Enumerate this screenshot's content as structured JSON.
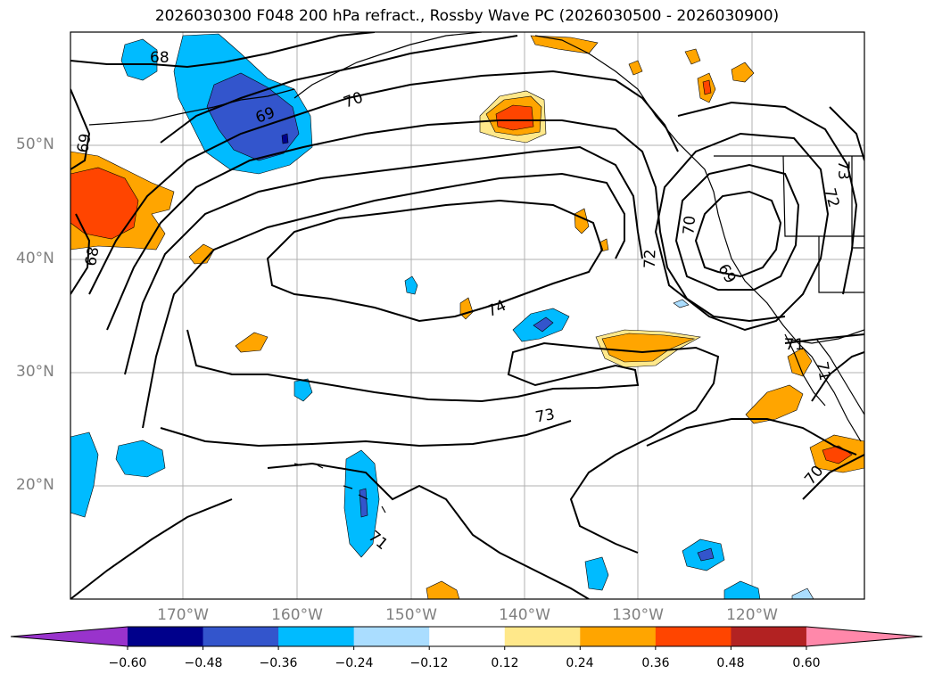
{
  "title": "2026030300 F048 200 hPa refract., Rossby Wave PC (2026030500 - 2026030900)",
  "axes": {
    "lat_labels": [
      "50°N",
      "40°N",
      "30°N",
      "20°N"
    ],
    "lon_labels": [
      "170°W",
      "160°W",
      "150°W",
      "140°W",
      "130°W",
      "120°W"
    ]
  },
  "colorbar": {
    "ticks": [
      "−0.60",
      "−0.48",
      "−0.36",
      "−0.24",
      "−0.12",
      "0.12",
      "0.24",
      "0.36",
      "0.48",
      "0.60"
    ],
    "colors": [
      "#9933cc",
      "#00008b",
      "#3355cc",
      "#00bbff",
      "#aaddff",
      "#ffffff",
      "#ffe88a",
      "#ffa500",
      "#ff4500",
      "#b22222",
      "#ff88aa"
    ]
  },
  "contour_labels": [
    "68",
    "69",
    "70",
    "69",
    "68",
    "74",
    "73",
    "72",
    "71",
    "70",
    "69",
    "72",
    "73",
    "71",
    "70",
    "71"
  ],
  "shading_colors": {
    "light_blue": "#aaddff",
    "blue": "#00bbff",
    "royal": "#3355cc",
    "navy": "#00008b",
    "purple": "#9933cc",
    "yellow": "#ffe88a",
    "orange": "#ffa500",
    "red_orange": "#ff4500"
  }
}
